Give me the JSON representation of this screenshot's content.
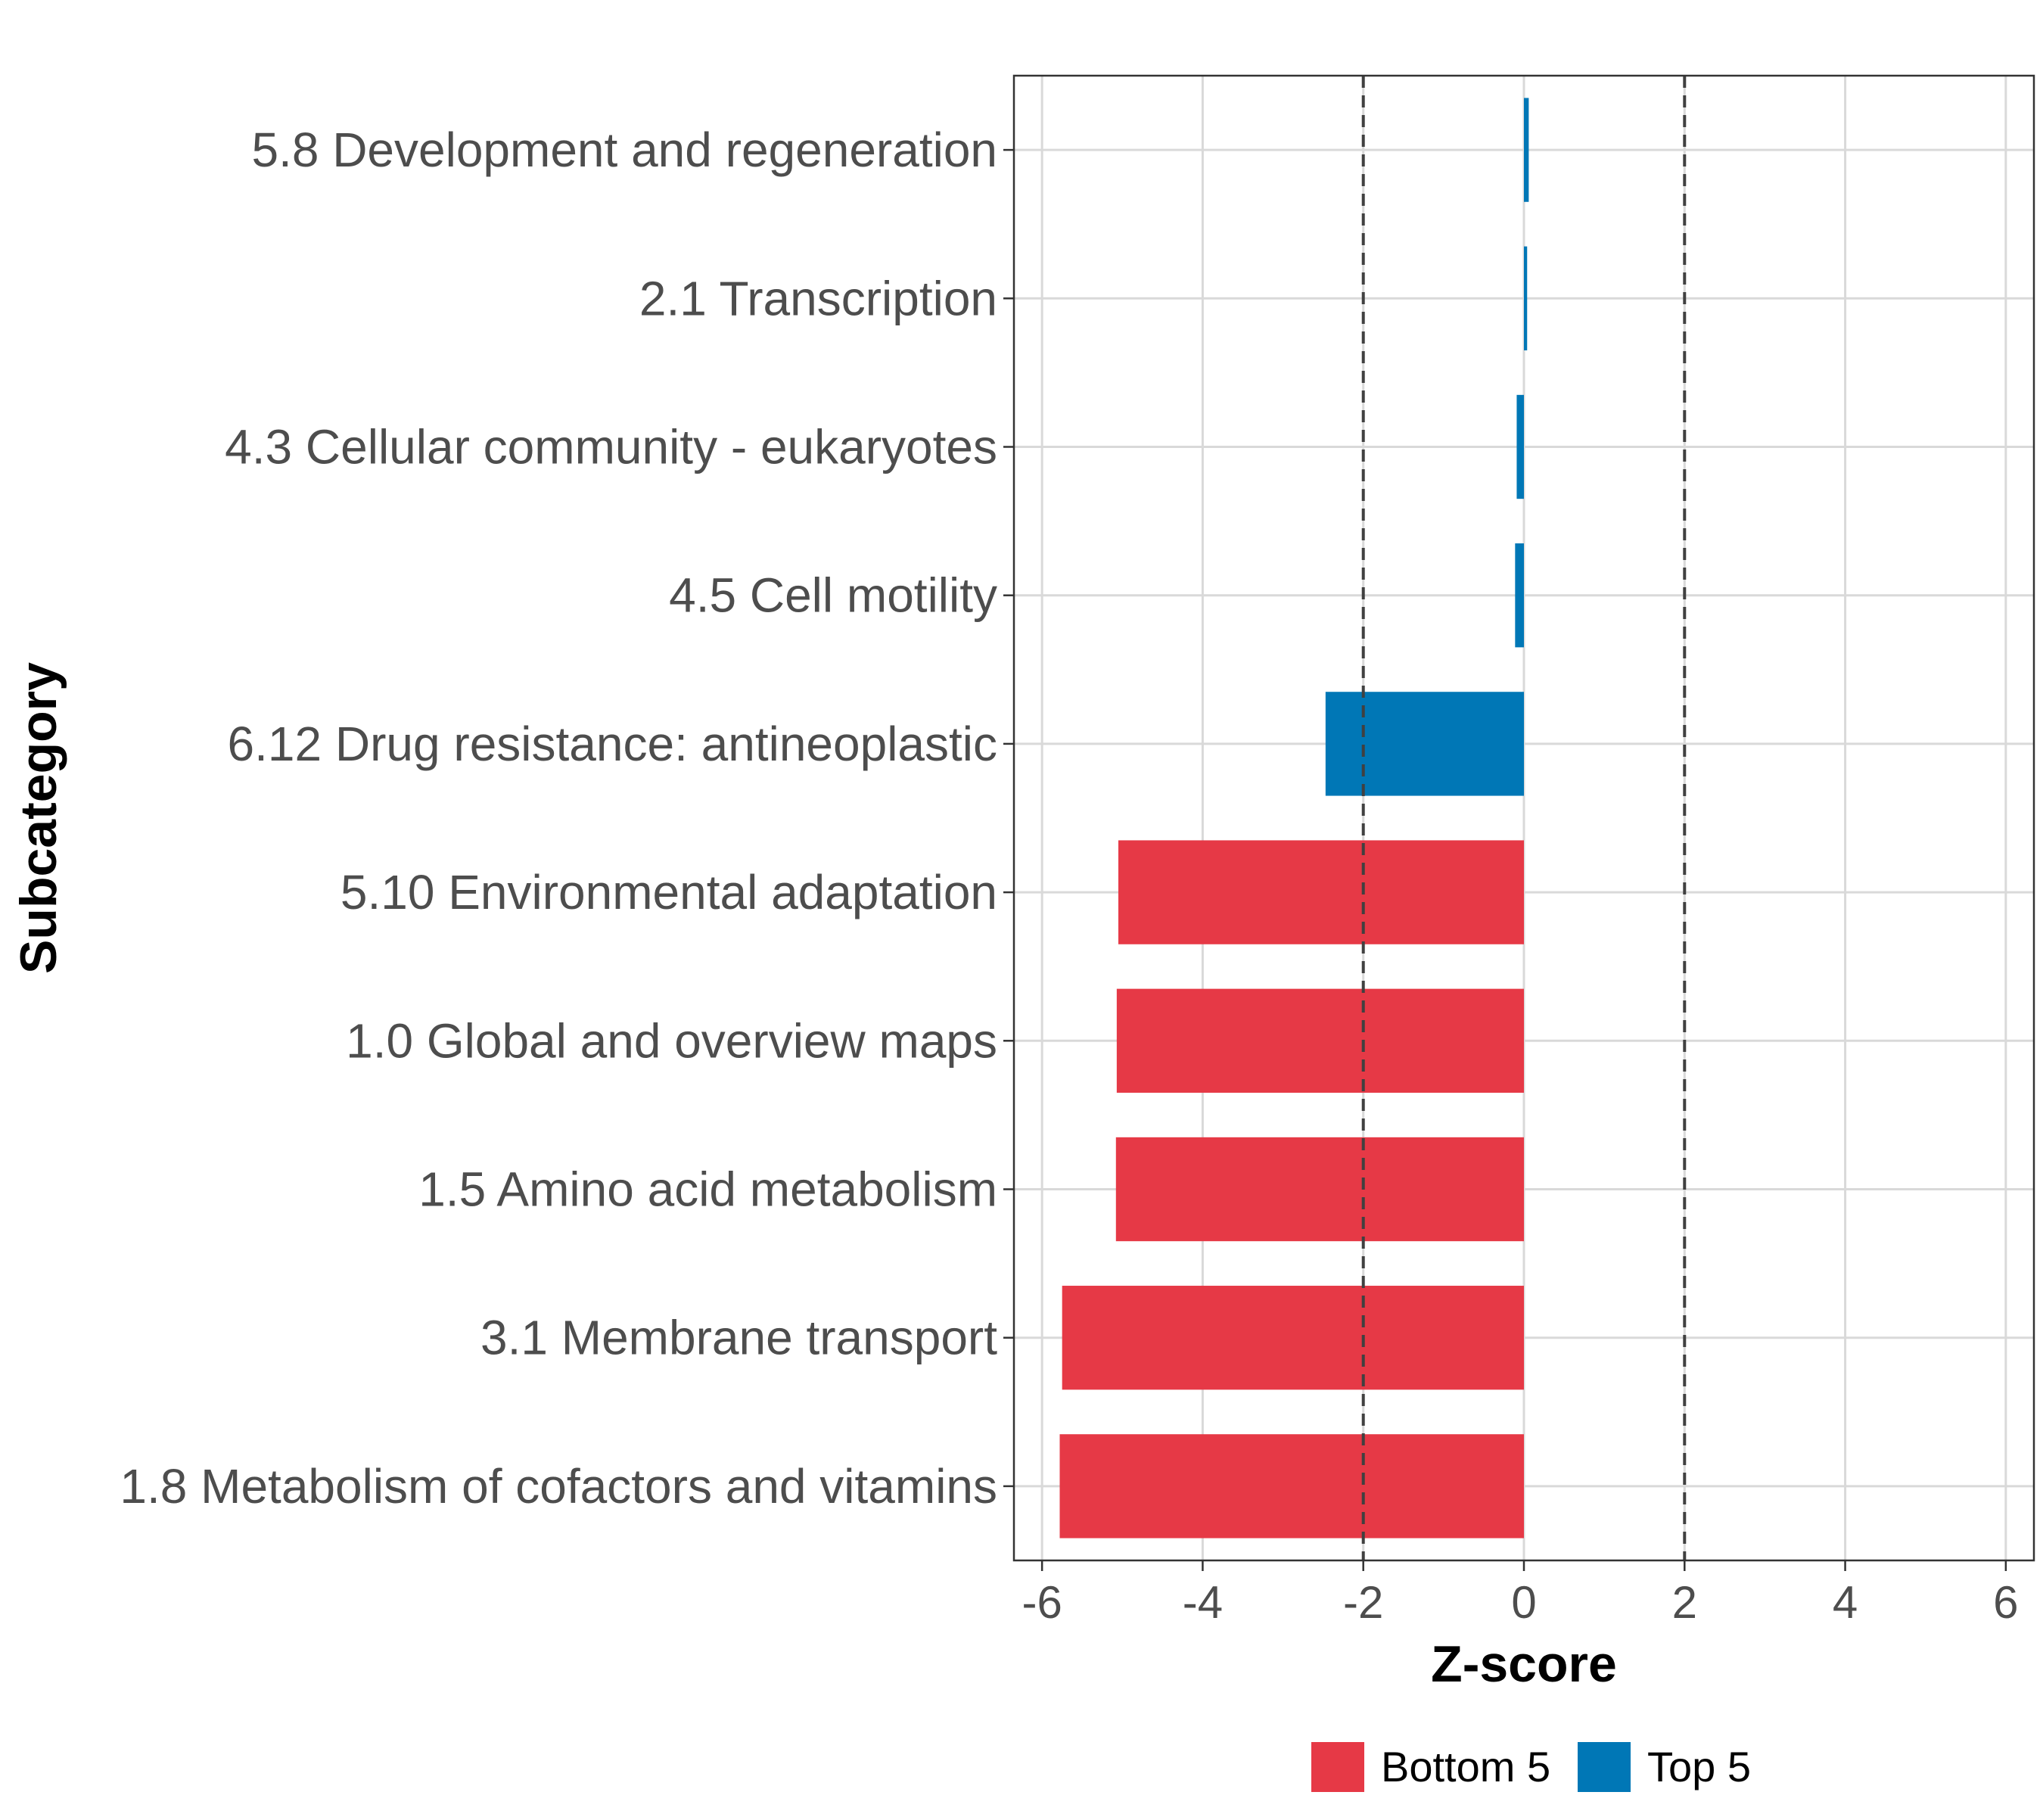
{
  "chart_data": {
    "type": "bar",
    "orientation": "horizontal",
    "title": "",
    "xlabel": "Z-score",
    "ylabel": "Subcategory",
    "xlim": [
      -6.35,
      6.35
    ],
    "xticks": [
      -6,
      -4,
      -2,
      0,
      2,
      4,
      6
    ],
    "xtick_labels": [
      "-6",
      "-4",
      "-2",
      "0",
      "2",
      "4",
      "6"
    ],
    "reference_lines": [
      -2,
      2
    ],
    "grid": true,
    "categories": [
      "5.8 Development and regeneration",
      "2.1 Transcription",
      "4.3 Cellular community - eukaryotes",
      "4.5 Cell motility",
      "6.12 Drug resistance: antineoplastic",
      "5.10 Environmental adaptation",
      "1.0 Global and overview maps",
      "1.5 Amino acid metabolism",
      "3.1 Membrane transport",
      "1.8 Metabolism of cofactors and vitamins"
    ],
    "values": [
      0.06,
      0.04,
      -0.09,
      -0.11,
      -2.47,
      -5.05,
      -5.07,
      -5.08,
      -5.75,
      -5.78
    ],
    "groups": [
      "Top 5",
      "Top 5",
      "Top 5",
      "Top 5",
      "Top 5",
      "Bottom 5",
      "Bottom 5",
      "Bottom 5",
      "Bottom 5",
      "Bottom 5"
    ],
    "legend": {
      "position": "bottom",
      "entries": [
        {
          "label": "Bottom 5",
          "color": "#e63946"
        },
        {
          "label": "Top 5",
          "color": "#0077b6"
        }
      ]
    }
  }
}
